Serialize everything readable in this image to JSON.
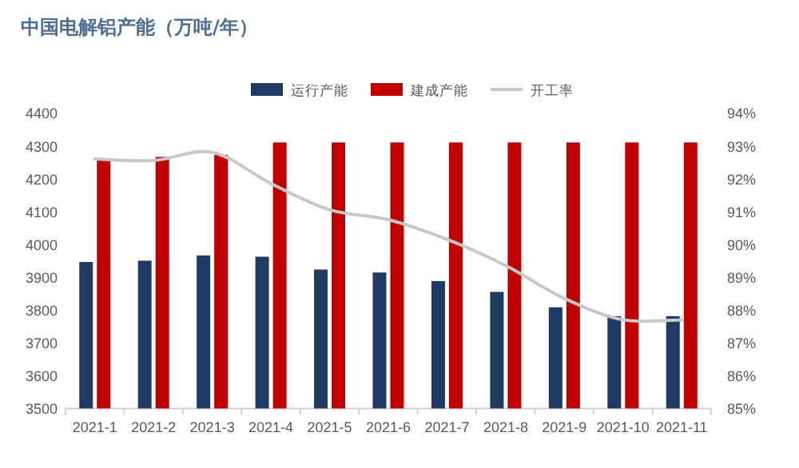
{
  "chart_data": {
    "type": "bar",
    "title": "中国电解铝产能（万吨/年）",
    "categories": [
      "2021-1",
      "2021-2",
      "2021-3",
      "2021-4",
      "2021-5",
      "2021-6",
      "2021-7",
      "2021-8",
      "2021-9",
      "2021-10",
      "2021-11"
    ],
    "series": [
      {
        "name": "运行产能",
        "type": "bar",
        "color": "#1f3b63",
        "values": [
          3946,
          3950,
          3966,
          3962,
          3923,
          3914,
          3888,
          3855,
          3808,
          3781,
          3781
        ]
      },
      {
        "name": "建成产能",
        "type": "bar",
        "color": "#c00000",
        "values": [
          4261,
          4266,
          4272,
          4310,
          4310,
          4310,
          4310,
          4310,
          4310,
          4310,
          4310
        ]
      },
      {
        "name": "开工率",
        "type": "line",
        "axis": "y2",
        "color": "#c8c8c8",
        "values": [
          92.6,
          92.55,
          92.8,
          91.85,
          91.05,
          90.75,
          90.15,
          89.35,
          88.35,
          87.7,
          87.7
        ]
      }
    ],
    "ylim": [
      3500,
      4400
    ],
    "yticks": [
      3500,
      3600,
      3700,
      3800,
      3900,
      4000,
      4100,
      4200,
      4300,
      4400
    ],
    "y2lim": [
      85,
      94
    ],
    "y2ticks": [
      {
        "value": 85,
        "label": "85%"
      },
      {
        "value": 86,
        "label": "86%"
      },
      {
        "value": 87,
        "label": "87%"
      },
      {
        "value": 88,
        "label": "88%"
      },
      {
        "value": 89,
        "label": "89%"
      },
      {
        "value": 90,
        "label": "90%"
      },
      {
        "value": 91,
        "label": "91%"
      },
      {
        "value": 92,
        "label": "92%"
      },
      {
        "value": 93,
        "label": "93%"
      },
      {
        "value": 94,
        "label": "94%"
      }
    ],
    "legend": "top"
  }
}
